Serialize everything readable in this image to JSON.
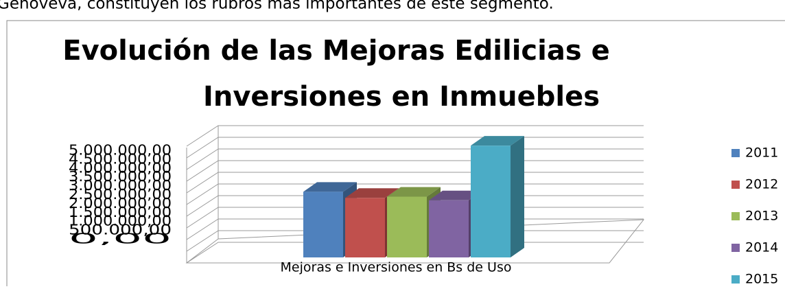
{
  "header_text": "Genoveva, constituyen los rubros más importantes de este segmento.",
  "chart_data": {
    "type": "bar3d",
    "title": [
      "Evolución de las Mejoras Edilicias e",
      "Inversiones en Inmuebles"
    ],
    "categories": [
      "Mejoras e Inversiones en Bs de Uso"
    ],
    "series": [
      {
        "name": "2011",
        "color": "#4f81bd",
        "values": [
          2700000
        ]
      },
      {
        "name": "2012",
        "color": "#c0504d",
        "values": [
          2450000
        ]
      },
      {
        "name": "2013",
        "color": "#9bbb59",
        "values": [
          2500000
        ]
      },
      {
        "name": "2014",
        "color": "#8064a2",
        "values": [
          2350000
        ]
      },
      {
        "name": "2015",
        "color": "#4bacc6",
        "values": [
          4600000
        ]
      }
    ],
    "ylim": [
      0,
      5000000
    ],
    "yticks": [
      {
        "value": 0,
        "label": "0,00"
      },
      {
        "value": 500000,
        "label": "500.000,00"
      },
      {
        "value": 1000000,
        "label": "1.000.000,00"
      },
      {
        "value": 1500000,
        "label": "1.500.000,00"
      },
      {
        "value": 2000000,
        "label": "2.000.000,00"
      },
      {
        "value": 2500000,
        "label": "2.500.000,00"
      },
      {
        "value": 3000000,
        "label": "3.000.000,00"
      },
      {
        "value": 3500000,
        "label": "3.500.000,00"
      },
      {
        "value": 4000000,
        "label": "4.000.000,00"
      },
      {
        "value": 4500000,
        "label": "4.500.000,00"
      },
      {
        "value": 5000000,
        "label": "5.000.000,00"
      }
    ],
    "grid": true,
    "legend": "right"
  }
}
